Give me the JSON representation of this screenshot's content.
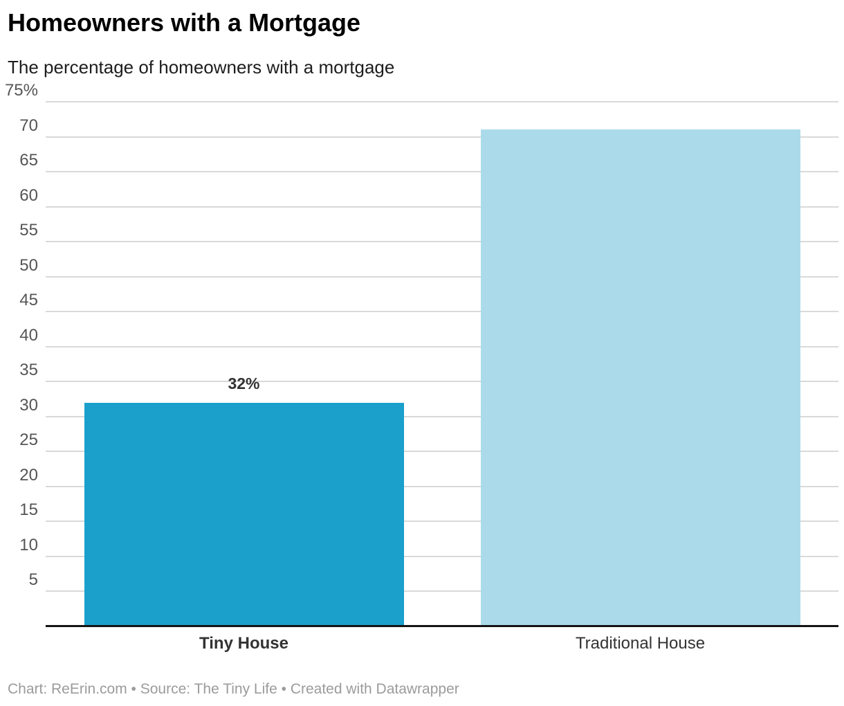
{
  "header": {
    "title": "Homeowners with a Mortgage",
    "subtitle": "The percentage of homeowners with a mortgage"
  },
  "footer": {
    "credit_line": "Chart: ReErin.com • Source: The Tiny Life • Created with Datawrapper"
  },
  "colors": {
    "tiny_house_bar": "#1aa0cb",
    "traditional_house_bar": "#abdbeb",
    "gridline": "#d9d9d9",
    "baseline": "#141414",
    "tick_label": "#555555",
    "category_label": "#333333",
    "value_label": "#333333",
    "footer_text": "#9b9b9b"
  },
  "chart_data": {
    "type": "bar",
    "title": "Homeowners with a Mortgage",
    "subtitle": "The percentage of homeowners with a mortgage",
    "categories": [
      "Tiny House",
      "Traditional House"
    ],
    "values": [
      32,
      71
    ],
    "value_labels": [
      "32%",
      ""
    ],
    "category_label_bold": [
      true,
      false
    ],
    "bar_colors": [
      "#1aa0cb",
      "#abdbeb"
    ],
    "xlabel": "",
    "ylabel": "",
    "ylim": [
      0,
      75
    ],
    "yticks": [
      5,
      10,
      15,
      20,
      25,
      30,
      35,
      40,
      45,
      50,
      55,
      60,
      65,
      70,
      75
    ],
    "ytick_labels": [
      "5",
      "10",
      "15",
      "20",
      "25",
      "30",
      "35",
      "40",
      "45",
      "50",
      "55",
      "60",
      "65",
      "70",
      "75%"
    ],
    "grid": true,
    "legend": "none"
  }
}
